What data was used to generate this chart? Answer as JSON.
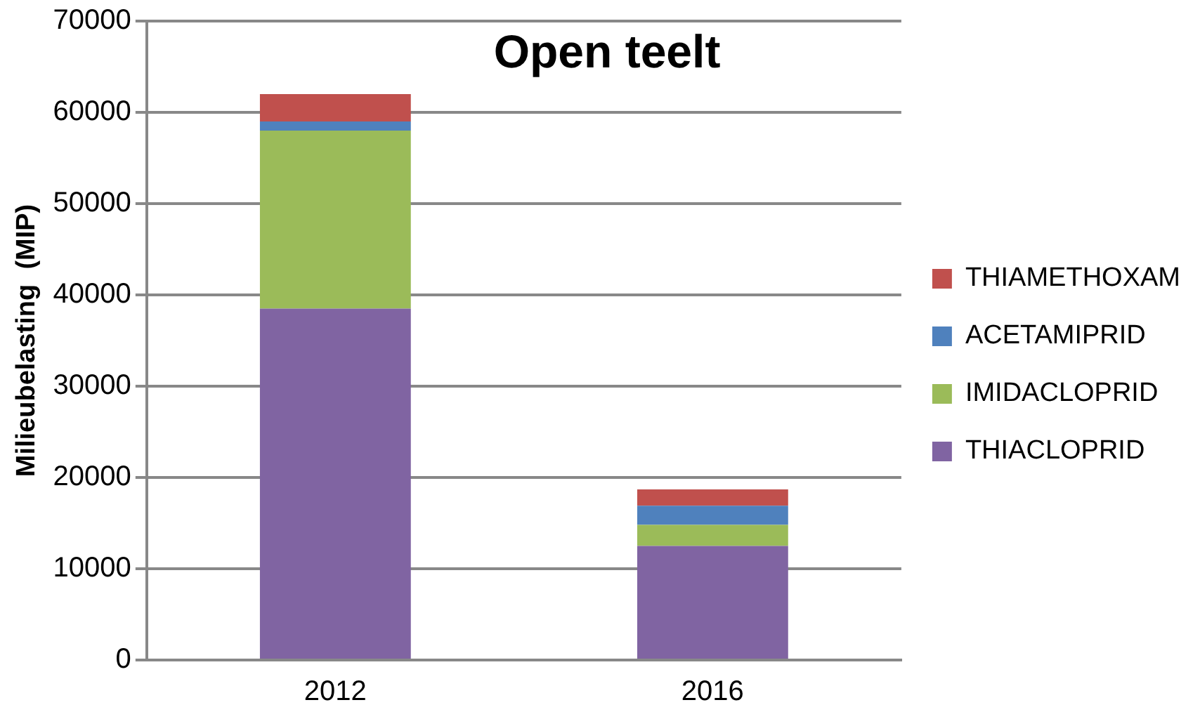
{
  "chart_data": {
    "type": "bar",
    "title": "Open teelt",
    "ylabel": "Milieubelasting  (MIP)",
    "categories": [
      "2012",
      "2016"
    ],
    "stacked": true,
    "series": [
      {
        "name": "THIACLOPRID",
        "color": "#8064a2",
        "values": [
          38500,
          12500
        ]
      },
      {
        "name": "IMIDACLOPRID",
        "color": "#9bbb59",
        "values": [
          19500,
          2300
        ]
      },
      {
        "name": "ACETAMIPRID",
        "color": "#4f81bd",
        "values": [
          1000,
          2100
        ]
      },
      {
        "name": "THIAMETHOXAM",
        "color": "#c0504d",
        "values": [
          3000,
          1800
        ]
      }
    ],
    "ylim": [
      0,
      70000
    ],
    "yticks": [
      0,
      10000,
      20000,
      30000,
      40000,
      50000,
      60000,
      70000
    ],
    "grid": "y",
    "legend": "right"
  }
}
